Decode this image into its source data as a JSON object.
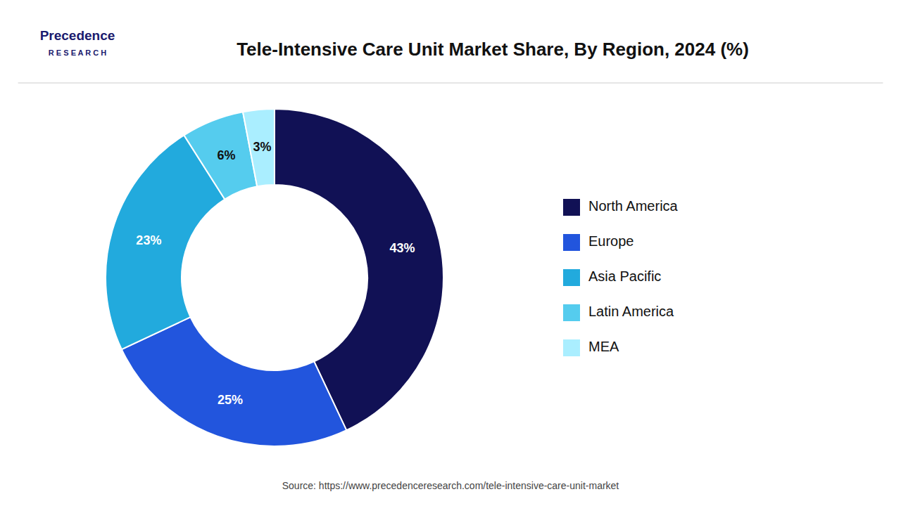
{
  "chart_data": {
    "type": "donut",
    "title": "Tele-Intensive Care Unit Market Share, By Region, 2024 (%)",
    "categories": [
      "North America",
      "Europe",
      "Asia Pacific",
      "Latin America",
      "MEA"
    ],
    "values": [
      43,
      25,
      23,
      6,
      3
    ],
    "value_labels": [
      "43%",
      "25%",
      "23%",
      "6%",
      "3%"
    ],
    "colors": [
      "#111155",
      "#2255DD",
      "#22AADD",
      "#55CCEE",
      "#AAEEFF"
    ],
    "data_labels": true,
    "legend": "right",
    "annotations": [
      "Precedence",
      "R E S E A R C H",
      "Source: https://www.precedenceresearch.com/tele-intensive-care-unit-market"
    ]
  }
}
